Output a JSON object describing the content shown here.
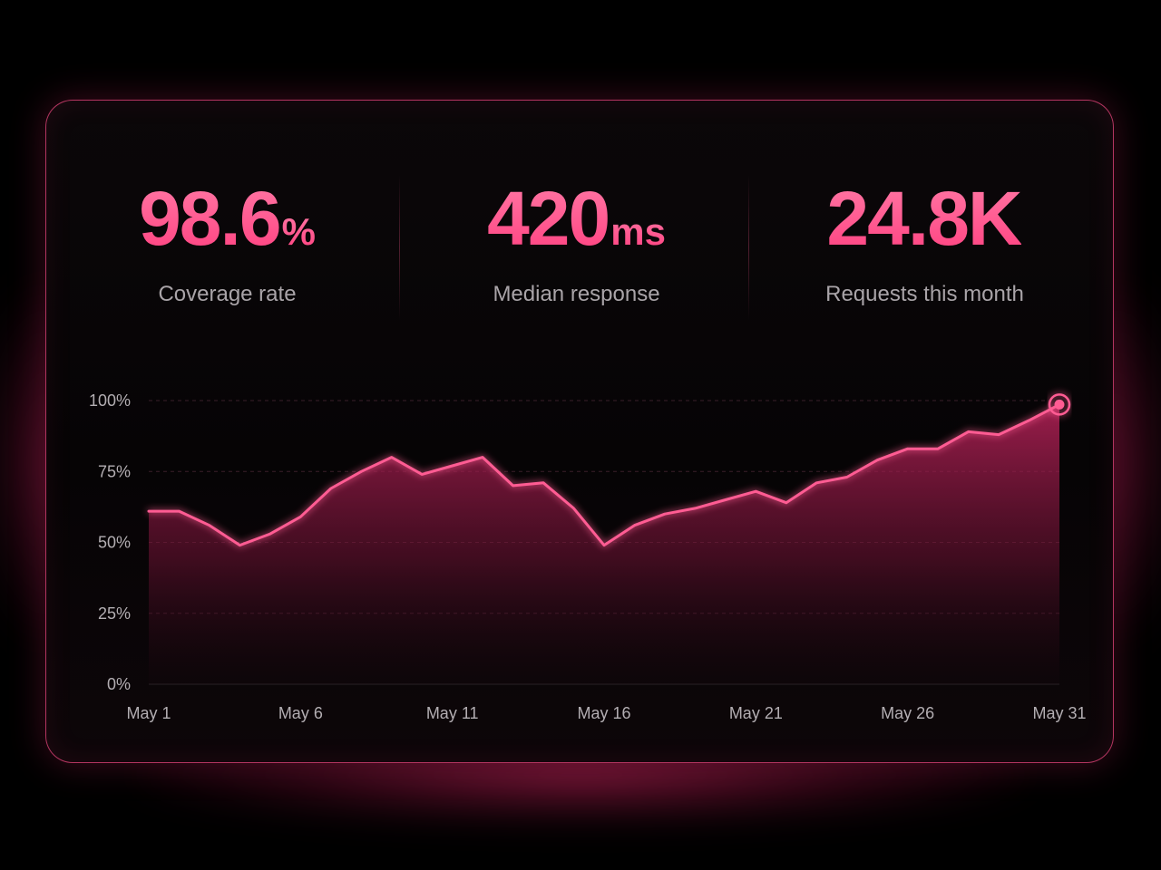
{
  "stats": [
    {
      "value": "98.6",
      "unit": "%",
      "label": "Coverage rate"
    },
    {
      "value": "420",
      "unit": "ms",
      "label": "Median response"
    },
    {
      "value": "24.8K",
      "unit": "",
      "label": "Requests this month"
    }
  ],
  "colors": {
    "accent": "#ff4f8b",
    "line": "#ff5c93",
    "background": "#000000",
    "label": "#a9a4a8"
  },
  "chart_data": {
    "type": "area",
    "title": "",
    "xlabel": "",
    "ylabel": "",
    "ylim": [
      0,
      100
    ],
    "grid": true,
    "yticks": [
      100,
      75,
      50,
      25,
      0
    ],
    "ytick_labels": [
      "100%",
      "75%",
      "50%",
      "25%",
      "0%"
    ],
    "xtick_labels": [
      "May 1",
      "May 6",
      "May 11",
      "May 16",
      "May 21",
      "May 26",
      "May 31"
    ],
    "x": [
      "May 1",
      "May 2",
      "May 3",
      "May 4",
      "May 5",
      "May 6",
      "May 7",
      "May 8",
      "May 9",
      "May 10",
      "May 11",
      "May 12",
      "May 13",
      "May 14",
      "May 15",
      "May 16",
      "May 17",
      "May 18",
      "May 19",
      "May 20",
      "May 21",
      "May 22",
      "May 23",
      "May 24",
      "May 25",
      "May 26",
      "May 27",
      "May 28",
      "May 29",
      "May 30",
      "May 31"
    ],
    "values": [
      61,
      61,
      56,
      49,
      53,
      59,
      69,
      75,
      80,
      74,
      77,
      80,
      70,
      71,
      62,
      49,
      56,
      60,
      62,
      65,
      68,
      64,
      71,
      73,
      79,
      83,
      83,
      89,
      88,
      93,
      98.6
    ],
    "highlight_last_point": true
  }
}
